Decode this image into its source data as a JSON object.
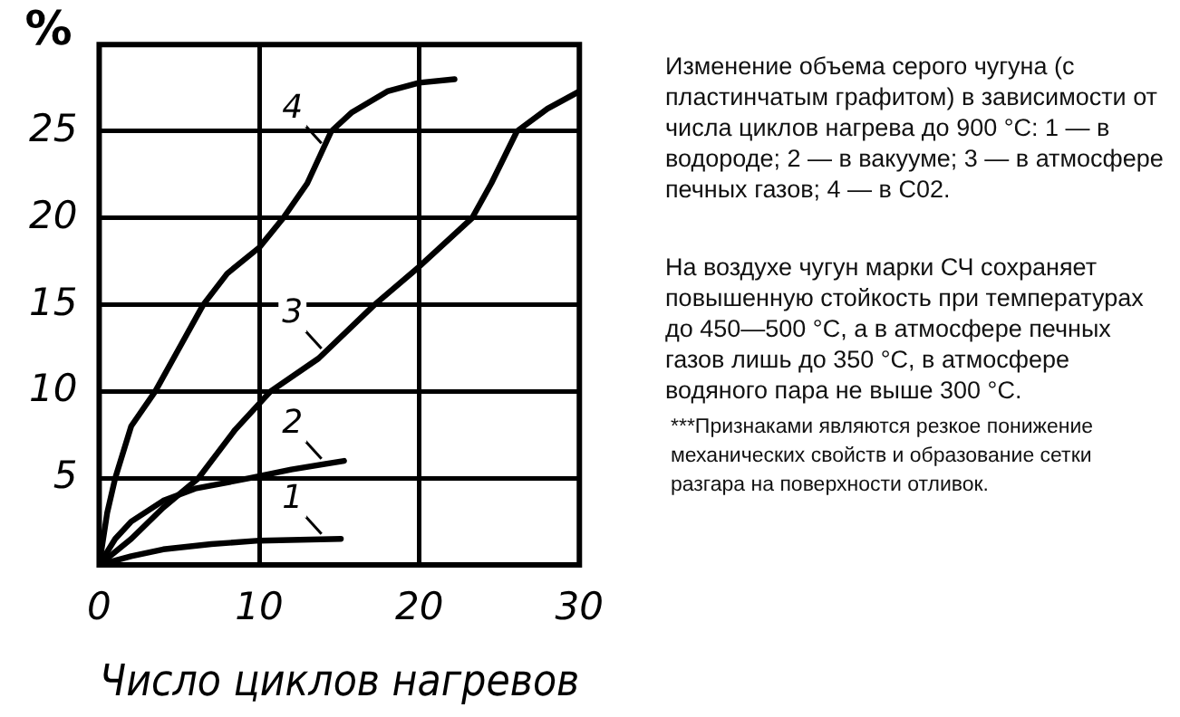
{
  "chart_data": {
    "type": "line",
    "xlabel": "Число циклов нагревов",
    "ylabel": "%",
    "xlim": [
      0,
      30
    ],
    "xticks": [
      0,
      10,
      20,
      30
    ],
    "ylim": [
      0,
      30
    ],
    "yticks": [
      {
        "value": 0,
        "label": null
      },
      5,
      10,
      15,
      20,
      25,
      {
        "value": 30,
        "label": null
      }
    ],
    "grid": true,
    "marker": "none",
    "line_style": "solid",
    "series": [
      {
        "name": "1",
        "color": "#000000",
        "x": [
          0,
          2,
          4,
          7,
          10,
          15.1
        ],
        "values": [
          0,
          0.5,
          0.9,
          1.2,
          1.4,
          1.5
        ]
      },
      {
        "name": "2",
        "color": "#000000",
        "x": [
          0,
          1,
          2,
          4,
          6,
          9.4,
          12,
          15.3
        ],
        "values": [
          0,
          1.5,
          2.5,
          3.7,
          4.4,
          5,
          5.5,
          6
        ]
      },
      {
        "name": "3",
        "color": "#000000",
        "x": [
          0,
          2,
          4,
          6.2,
          8.5,
          10.7,
          13.7,
          17.2,
          20,
          23.3,
          24.5,
          25.3,
          26.1,
          28,
          30
        ],
        "values": [
          0,
          1.5,
          3.3,
          5,
          7.8,
          10,
          11.9,
          15,
          17.2,
          20,
          22,
          23.5,
          25,
          26.3,
          27.3
        ]
      },
      {
        "name": "4",
        "color": "#000000",
        "x": [
          0,
          0.5,
          1,
          2,
          3.5,
          5,
          6.5,
          8,
          10,
          11.5,
          13,
          14.5,
          15.8,
          18,
          20,
          22.2
        ],
        "values": [
          0,
          3,
          5,
          8,
          10,
          12.5,
          15,
          16.8,
          18.3,
          20,
          22,
          25,
          26.1,
          27.3,
          27.8,
          28
        ]
      }
    ],
    "annotations": [
      "Изменение объема серого чугуна (с пластинчатым графитом) в зависимости от числа циклов нагрева до 900 °С: 1 — в водороде; 2 — в вакууме; 3 — в атмосфере печных газов; 4 — в С02.",
      "На воздухе чугун марки СЧ сохраняет повышенную стойкость при температурах до 450—500 °С, а в атмосфере печных газов лишь до 350 °С, в атмосфере водяного пара не выше 300 °С.",
      "***Признаками являются резкое понижение механических свойств и образование сетки разгара на поверхности отливок."
    ]
  }
}
